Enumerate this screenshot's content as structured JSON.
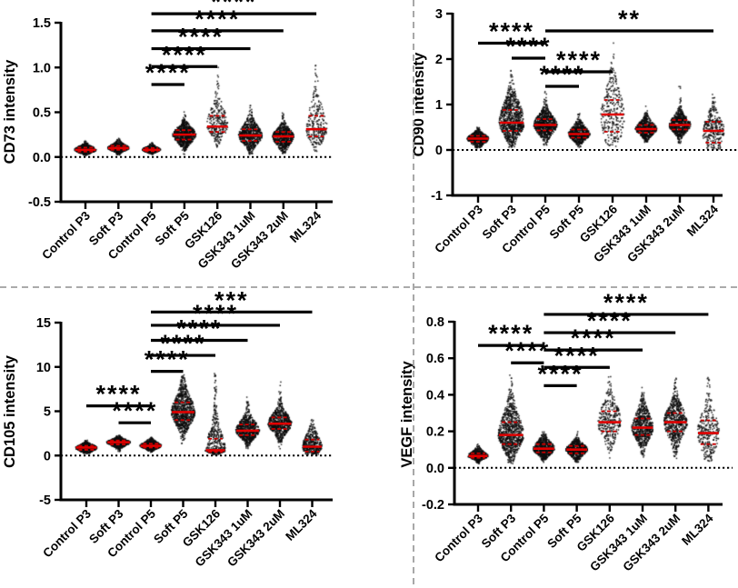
{
  "figure": {
    "background": "#ffffff",
    "point_color": "#0d0d0d",
    "median_color": "#e00000",
    "quartile_color": "#c40000",
    "axis_color": "#000000",
    "divider_color": "#9e9e9e",
    "dividers": {
      "horizontal_y": 316,
      "vertical_x": 455
    }
  },
  "categories": [
    "Control P3",
    "Soft P3",
    "Control P5",
    "Soft P5",
    "GSK126",
    "GSK343 1uM",
    "GSK343 2uM",
    "ML324"
  ],
  "chart_data": [
    {
      "type": "scatter",
      "id": "cd73",
      "ylabel": "CD73 intensity",
      "ylim": [
        -0.5,
        1.5
      ],
      "yticks": [
        -0.5,
        0.0,
        0.5,
        1.0,
        1.5
      ],
      "ytick_labels": [
        "-0.5",
        "0.0",
        "0.5",
        "1.0",
        "1.5"
      ],
      "zero_line": 0,
      "groups": [
        {
          "median": 0.08,
          "q1": 0.06,
          "q3": 0.105,
          "min": 0.015,
          "max": 0.22,
          "n": 500,
          "w": 12,
          "tail": 0
        },
        {
          "median": 0.1,
          "q1": 0.08,
          "q3": 0.125,
          "min": 0.02,
          "max": 0.21,
          "n": 500,
          "w": 12,
          "tail": 0
        },
        {
          "median": 0.08,
          "q1": 0.065,
          "q3": 0.1,
          "min": 0.025,
          "max": 0.16,
          "n": 450,
          "w": 10,
          "tail": 0
        },
        {
          "median": 0.25,
          "q1": 0.195,
          "q3": 0.3,
          "min": 0.03,
          "max": 0.53,
          "n": 750,
          "w": 13,
          "tail": 0.02
        },
        {
          "median": 0.34,
          "q1": 0.28,
          "q3": 0.46,
          "min": 0.05,
          "max": 1.0,
          "n": 270,
          "w": 12,
          "tail": 0.1
        },
        {
          "median": 0.24,
          "q1": 0.18,
          "q3": 0.31,
          "min": 0.03,
          "max": 0.58,
          "n": 700,
          "w": 13,
          "tail": 0.02
        },
        {
          "median": 0.23,
          "q1": 0.17,
          "q3": 0.28,
          "min": 0.04,
          "max": 0.52,
          "n": 650,
          "w": 12,
          "tail": 0.02
        },
        {
          "median": 0.31,
          "q1": 0.23,
          "q3": 0.46,
          "min": 0.05,
          "max": 1.05,
          "n": 260,
          "w": 12,
          "tail": 0.1
        }
      ],
      "comparisons": [
        {
          "a": "Control P5",
          "b": "Soft P5",
          "stars": "****",
          "y": 0.81
        },
        {
          "a": "Control P5",
          "b": "GSK126",
          "stars": "****",
          "y": 1.01
        },
        {
          "a": "Control P5",
          "b": "GSK343 1uM",
          "stars": "****",
          "y": 1.21
        },
        {
          "a": "Control P5",
          "b": "GSK343 2uM",
          "stars": "****",
          "y": 1.41
        },
        {
          "a": "Control P5",
          "b": "ML324",
          "stars": "****",
          "y": 1.6
        }
      ],
      "layout": {
        "yAxisX": 67,
        "yTop": 25,
        "xAxisY": 222,
        "xEnd": 366,
        "x0": 94,
        "dx": 36.3,
        "ylabelX": 16,
        "ylabelY": 123,
        "zeroEnd": 366
      }
    },
    {
      "type": "scatter",
      "id": "cd90",
      "ylabel": "CD90 intensity",
      "ylim": [
        -1,
        3
      ],
      "yticks": [
        -1,
        0,
        1,
        2,
        3
      ],
      "ytick_labels": [
        "-1",
        "0",
        "1",
        "2",
        "3"
      ],
      "zero_line": 0,
      "groups": [
        {
          "median": 0.25,
          "q1": 0.18,
          "q3": 0.31,
          "min": 0.04,
          "max": 0.58,
          "n": 550,
          "w": 12,
          "tail": 0
        },
        {
          "median": 0.6,
          "q1": 0.42,
          "q3": 0.88,
          "min": 0.05,
          "max": 1.92,
          "n": 850,
          "w": 14,
          "tail": 0.05
        },
        {
          "median": 0.55,
          "q1": 0.43,
          "q3": 0.68,
          "min": 0.1,
          "max": 1.3,
          "n": 800,
          "w": 13,
          "tail": 0.03
        },
        {
          "median": 0.35,
          "q1": 0.27,
          "q3": 0.45,
          "min": 0.05,
          "max": 0.85,
          "n": 650,
          "w": 12,
          "tail": 0.02
        },
        {
          "median": 0.78,
          "q1": 0.4,
          "q3": 1.1,
          "min": 0.08,
          "max": 2.4,
          "n": 300,
          "w": 13,
          "tail": 0.08
        },
        {
          "median": 0.46,
          "q1": 0.38,
          "q3": 0.55,
          "min": 0.15,
          "max": 1.05,
          "n": 600,
          "w": 12,
          "tail": 0.02
        },
        {
          "median": 0.55,
          "q1": 0.45,
          "q3": 0.66,
          "min": 0.12,
          "max": 1.42,
          "n": 650,
          "w": 12,
          "tail": 0.03
        },
        {
          "median": 0.42,
          "q1": 0.16,
          "q3": 0.62,
          "min": 0.02,
          "max": 1.3,
          "n": 300,
          "w": 12,
          "tail": 0.05
        }
      ],
      "comparisons": [
        {
          "a": "Control P3",
          "b": "Control P5",
          "stars": "****",
          "y": 2.35
        },
        {
          "a": "Soft P3",
          "b": "Control P5",
          "stars": "****",
          "y": 2.02
        },
        {
          "a": "Control P5",
          "b": "Soft P5",
          "stars": "****",
          "y": 1.4
        },
        {
          "a": "Control P5",
          "b": "GSK126",
          "stars": "****",
          "y": 1.72
        },
        {
          "a": "Control P5",
          "b": "ML324",
          "stars": "**",
          "y": 2.62
        }
      ],
      "layout": {
        "yAxisX": 498,
        "yTop": 15,
        "xAxisY": 215,
        "xEnd": 795,
        "x0": 526,
        "dx": 37,
        "ylabelX": 466,
        "ylabelY": 115,
        "zeroEnd": 812
      }
    },
    {
      "type": "scatter",
      "id": "cd105",
      "ylabel": "CD105 intensity",
      "ylim": [
        -5,
        15
      ],
      "yticks": [
        -5,
        0,
        5,
        10,
        15
      ],
      "ytick_labels": [
        "-5",
        "0",
        "5",
        "10",
        "15"
      ],
      "zero_line": 0,
      "groups": [
        {
          "median": 0.9,
          "q1": 0.65,
          "q3": 1.1,
          "min": 0.2,
          "max": 2.1,
          "n": 550,
          "w": 12,
          "tail": 0
        },
        {
          "median": 1.5,
          "q1": 1.25,
          "q3": 1.7,
          "min": 0.3,
          "max": 2.6,
          "n": 600,
          "w": 13,
          "tail": 0
        },
        {
          "median": 1.1,
          "q1": 0.9,
          "q3": 1.35,
          "min": 0.3,
          "max": 2.1,
          "n": 600,
          "w": 12,
          "tail": 0
        },
        {
          "median": 4.9,
          "q1": 4.0,
          "q3": 6.0,
          "min": 0.2,
          "max": 9.1,
          "n": 850,
          "w": 13,
          "tail": 0.03
        },
        {
          "median": 0.6,
          "q1": 0.4,
          "q3": 1.9,
          "min": 0.1,
          "max": 9.5,
          "n": 450,
          "w": 11,
          "tail": 0.22
        },
        {
          "median": 2.8,
          "q1": 2.3,
          "q3": 3.5,
          "min": 0.1,
          "max": 6.6,
          "n": 700,
          "w": 13,
          "tail": 0.03
        },
        {
          "median": 3.6,
          "q1": 3.0,
          "q3": 4.3,
          "min": 0.2,
          "max": 8.4,
          "n": 700,
          "w": 13,
          "tail": 0.03
        },
        {
          "median": 1.0,
          "q1": 0.45,
          "q3": 1.8,
          "min": 0.1,
          "max": 4.3,
          "n": 420,
          "w": 11,
          "tail": 0.04
        }
      ],
      "comparisons": [
        {
          "a": "Control P3",
          "b": "Control P5",
          "stars": "****",
          "y": 5.6
        },
        {
          "a": "Soft P3",
          "b": "Control P5",
          "stars": "****",
          "y": 3.7
        },
        {
          "a": "Control P5",
          "b": "Soft P5",
          "stars": "****",
          "y": 9.5
        },
        {
          "a": "Control P5",
          "b": "GSK126",
          "stars": "****",
          "y": 11.3
        },
        {
          "a": "Control P5",
          "b": "GSK343 1uM",
          "stars": "****",
          "y": 13.0
        },
        {
          "a": "Control P5",
          "b": "GSK343 2uM",
          "stars": "****",
          "y": 14.7
        },
        {
          "a": "Control P5",
          "b": "ML324",
          "stars": "***",
          "y": 16.2
        }
      ],
      "layout": {
        "yAxisX": 67,
        "yTop": 355,
        "xAxisY": 550,
        "xEnd": 366,
        "x0": 95,
        "dx": 35.5,
        "ylabelX": 16,
        "ylabelY": 453,
        "zeroEnd": 366
      }
    },
    {
      "type": "scatter",
      "id": "vegf",
      "ylabel": "VEGF intensity",
      "ylim": [
        -0.2,
        0.8
      ],
      "yticks": [
        -0.2,
        0.0,
        0.2,
        0.4,
        0.6,
        0.8
      ],
      "ytick_labels": [
        "-0.2",
        "0.0",
        "0.2",
        "0.4",
        "0.6",
        "0.8"
      ],
      "zero_line": 0,
      "groups": [
        {
          "median": 0.065,
          "q1": 0.055,
          "q3": 0.08,
          "min": 0.02,
          "max": 0.14,
          "n": 500,
          "w": 11,
          "tail": 0
        },
        {
          "median": 0.18,
          "q1": 0.13,
          "q3": 0.25,
          "min": 0.02,
          "max": 0.52,
          "n": 850,
          "w": 14,
          "tail": 0.05
        },
        {
          "median": 0.105,
          "q1": 0.085,
          "q3": 0.13,
          "min": 0.03,
          "max": 0.23,
          "n": 650,
          "w": 12,
          "tail": 0
        },
        {
          "median": 0.1,
          "q1": 0.08,
          "q3": 0.12,
          "min": 0.03,
          "max": 0.2,
          "n": 600,
          "w": 12,
          "tail": 0
        },
        {
          "median": 0.25,
          "q1": 0.2,
          "q3": 0.31,
          "min": 0.05,
          "max": 0.57,
          "n": 330,
          "w": 13,
          "tail": 0.06
        },
        {
          "median": 0.22,
          "q1": 0.18,
          "q3": 0.27,
          "min": 0.05,
          "max": 0.44,
          "n": 650,
          "w": 12,
          "tail": 0.02
        },
        {
          "median": 0.25,
          "q1": 0.2,
          "q3": 0.3,
          "min": 0.05,
          "max": 0.52,
          "n": 650,
          "w": 13,
          "tail": 0.02
        },
        {
          "median": 0.19,
          "q1": 0.13,
          "q3": 0.26,
          "min": 0.03,
          "max": 0.5,
          "n": 300,
          "w": 12,
          "tail": 0.05
        }
      ],
      "comparisons": [
        {
          "a": "Control P3",
          "b": "Control P5",
          "stars": "****",
          "y": 0.67
        },
        {
          "a": "Soft P3",
          "b": "Control P5",
          "stars": "****",
          "y": 0.575
        },
        {
          "a": "Control P5",
          "b": "Soft P5",
          "stars": "****",
          "y": 0.45
        },
        {
          "a": "Control P5",
          "b": "GSK126",
          "stars": "****",
          "y": 0.55
        },
        {
          "a": "Control P5",
          "b": "GSK343 1uM",
          "stars": "****",
          "y": 0.645
        },
        {
          "a": "Control P5",
          "b": "GSK343 2uM",
          "stars": "****",
          "y": 0.74
        },
        {
          "a": "Control P5",
          "b": "ML324",
          "stars": "****",
          "y": 0.84
        }
      ],
      "layout": {
        "yAxisX": 500,
        "yTop": 354,
        "xAxisY": 555,
        "xEnd": 795,
        "x0": 526,
        "dx": 36.2,
        "ylabelX": 453,
        "ylabelY": 456,
        "zeroEnd": 806
      }
    }
  ]
}
